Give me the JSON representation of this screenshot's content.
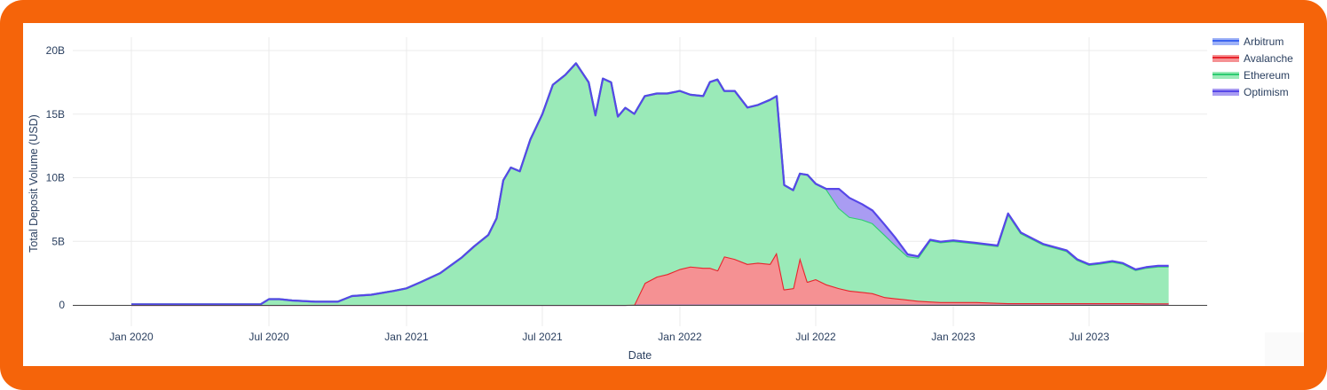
{
  "chart_data": {
    "type": "area",
    "stacked": true,
    "title": "",
    "xlabel": "Date",
    "ylabel": "Total Deposit Volume (USD)",
    "ylim": [
      0,
      20000000000
    ],
    "xlim": [
      "2019-12-01",
      "2023-11-15"
    ],
    "grid": true,
    "legend_position": "top-right",
    "x_ticks": [
      "Jan 2020",
      "Jul 2020",
      "Jan 2021",
      "Jul 2021",
      "Jan 2022",
      "Jul 2022",
      "Jan 2023",
      "Jul 2023"
    ],
    "y_ticks": [
      "0",
      "5B",
      "10B",
      "15B",
      "20B"
    ],
    "y_tick_values": [
      0,
      5,
      10,
      15,
      20
    ],
    "units": "billions USD",
    "x": [
      "2020-01-01",
      "2020-03-01",
      "2020-05-01",
      "2020-06-20",
      "2020-07-01",
      "2020-07-15",
      "2020-08-01",
      "2020-09-01",
      "2020-10-01",
      "2020-10-20",
      "2020-11-15",
      "2020-12-15",
      "2021-01-01",
      "2021-01-20",
      "2021-02-15",
      "2021-03-15",
      "2021-04-01",
      "2021-04-20",
      "2021-05-01",
      "2021-05-10",
      "2021-05-20",
      "2021-06-01",
      "2021-06-15",
      "2021-07-01",
      "2021-07-15",
      "2021-08-01",
      "2021-08-15",
      "2021-09-01",
      "2021-09-10",
      "2021-09-20",
      "2021-10-01",
      "2021-10-10",
      "2021-10-20",
      "2021-11-01",
      "2021-11-15",
      "2021-12-01",
      "2021-12-15",
      "2022-01-01",
      "2022-01-15",
      "2022-02-01",
      "2022-02-10",
      "2022-02-20",
      "2022-03-01",
      "2022-03-15",
      "2022-04-01",
      "2022-04-15",
      "2022-05-01",
      "2022-05-10",
      "2022-05-20",
      "2022-06-01",
      "2022-06-10",
      "2022-06-20",
      "2022-07-01",
      "2022-07-15",
      "2022-08-01",
      "2022-08-15",
      "2022-09-01",
      "2022-09-15",
      "2022-10-01",
      "2022-10-15",
      "2022-11-01",
      "2022-11-15",
      "2022-12-01",
      "2022-12-15",
      "2023-01-01",
      "2023-02-01",
      "2023-03-01",
      "2023-03-15",
      "2023-04-01",
      "2023-05-01",
      "2023-06-01",
      "2023-06-15",
      "2023-07-01",
      "2023-07-15",
      "2023-08-01",
      "2023-08-15",
      "2023-09-01",
      "2023-09-15",
      "2023-10-01",
      "2023-10-15"
    ],
    "series": [
      {
        "name": "Arbitrum",
        "color": "#3b63f0",
        "fill": "#9db1f7",
        "values": [
          0,
          0,
          0,
          0,
          0,
          0,
          0,
          0,
          0,
          0,
          0,
          0,
          0,
          0,
          0,
          0,
          0,
          0,
          0,
          0,
          0,
          0,
          0,
          0,
          0,
          0,
          0,
          0,
          0,
          0,
          0,
          0,
          0,
          0.02,
          0.02,
          0.02,
          0.02,
          0.02,
          0.02,
          0.02,
          0.02,
          0.02,
          0.02,
          0.02,
          0.02,
          0.02,
          0.02,
          0.02,
          0.02,
          0.02,
          0.02,
          0.02,
          0.02,
          0.02,
          0.02,
          0.02,
          0.02,
          0.02,
          0.02,
          0.02,
          0.02,
          0.02,
          0.02,
          0.02,
          0.02,
          0.02,
          0.02,
          0.02,
          0.02,
          0.02,
          0.02,
          0.02,
          0.02,
          0.02,
          0.02,
          0.02,
          0.02,
          0.02,
          0.02,
          0.02
        ]
      },
      {
        "name": "Avalanche",
        "color": "#e8242c",
        "fill": "#f59193",
        "values": [
          0,
          0,
          0,
          0,
          0,
          0,
          0,
          0,
          0,
          0,
          0,
          0,
          0,
          0,
          0,
          0,
          0,
          0,
          0,
          0,
          0,
          0,
          0,
          0,
          0,
          0,
          0,
          0,
          0,
          0,
          0,
          0,
          0,
          0,
          1.7,
          2.2,
          2.4,
          2.8,
          3.0,
          2.9,
          2.9,
          2.7,
          3.8,
          3.6,
          3.2,
          3.3,
          3.2,
          4.1,
          1.2,
          1.3,
          3.7,
          1.8,
          2.0,
          1.6,
          1.3,
          1.1,
          1.0,
          0.9,
          0.6,
          0.5,
          0.4,
          0.3,
          0.25,
          0.2,
          0.2,
          0.2,
          0.15,
          0.12,
          0.12,
          0.12,
          0.12,
          0.12,
          0.12,
          0.12,
          0.12,
          0.12,
          0.12,
          0.1,
          0.1,
          0.1
        ]
      },
      {
        "name": "Ethereum",
        "color": "#2ecc71",
        "fill": "#9aeab8",
        "values": [
          0.05,
          0.05,
          0.05,
          0.05,
          0.45,
          0.45,
          0.35,
          0.25,
          0.25,
          0.7,
          0.8,
          1.1,
          1.3,
          1.8,
          2.5,
          3.7,
          4.6,
          5.5,
          6.8,
          9.8,
          10.8,
          10.5,
          13.0,
          15.0,
          17.3,
          18.1,
          19.0,
          17.5,
          14.9,
          17.8,
          17.5,
          14.8,
          15.5,
          15.0,
          14.7,
          14.4,
          14.2,
          14.0,
          13.5,
          13.5,
          14.6,
          15.0,
          13.0,
          13.2,
          12.3,
          12.4,
          12.9,
          12.3,
          8.2,
          7.7,
          6.6,
          8.4,
          7.5,
          7.5,
          6.3,
          5.8,
          5.7,
          5.5,
          4.9,
          4.2,
          3.4,
          3.4,
          4.8,
          4.7,
          4.8,
          4.6,
          4.45,
          7.0,
          5.5,
          4.6,
          4.1,
          3.4,
          3.0,
          3.1,
          3.25,
          3.1,
          2.6,
          2.8,
          2.9,
          2.9
        ]
      },
      {
        "name": "Optimism",
        "color": "#5747e8",
        "fill": "#a99cf2",
        "values": [
          0,
          0,
          0,
          0,
          0,
          0,
          0,
          0,
          0,
          0,
          0,
          0,
          0,
          0,
          0,
          0,
          0,
          0,
          0,
          0,
          0,
          0,
          0,
          0,
          0,
          0,
          0,
          0,
          0,
          0,
          0,
          0,
          0,
          0,
          0,
          0,
          0,
          0,
          0,
          0,
          0,
          0,
          0,
          0,
          0,
          0,
          0,
          0,
          0,
          0,
          0,
          0,
          0,
          0,
          1.5,
          1.5,
          1.2,
          1.0,
          0.8,
          0.6,
          0.15,
          0.1,
          0.05,
          0.05,
          0.05,
          0.05,
          0.05,
          0.05,
          0.05,
          0.05,
          0.05,
          0.05,
          0.05,
          0.05,
          0.05,
          0.05,
          0.05,
          0.05,
          0.05,
          0.05
        ]
      }
    ]
  },
  "legend": {
    "items": [
      {
        "label": "Arbitrum",
        "color": "#3b63f0",
        "fill": "#9db1f7"
      },
      {
        "label": "Avalanche",
        "color": "#e8242c",
        "fill": "#f59193"
      },
      {
        "label": "Ethereum",
        "color": "#2ecc71",
        "fill": "#9aeab8"
      },
      {
        "label": "Optimism",
        "color": "#5747e8",
        "fill": "#a99cf2"
      }
    ]
  },
  "colors": {
    "frame": "#f5640a",
    "panel": "#ffffff",
    "grid": "#ebebeb",
    "text": "#2a3f5f"
  }
}
